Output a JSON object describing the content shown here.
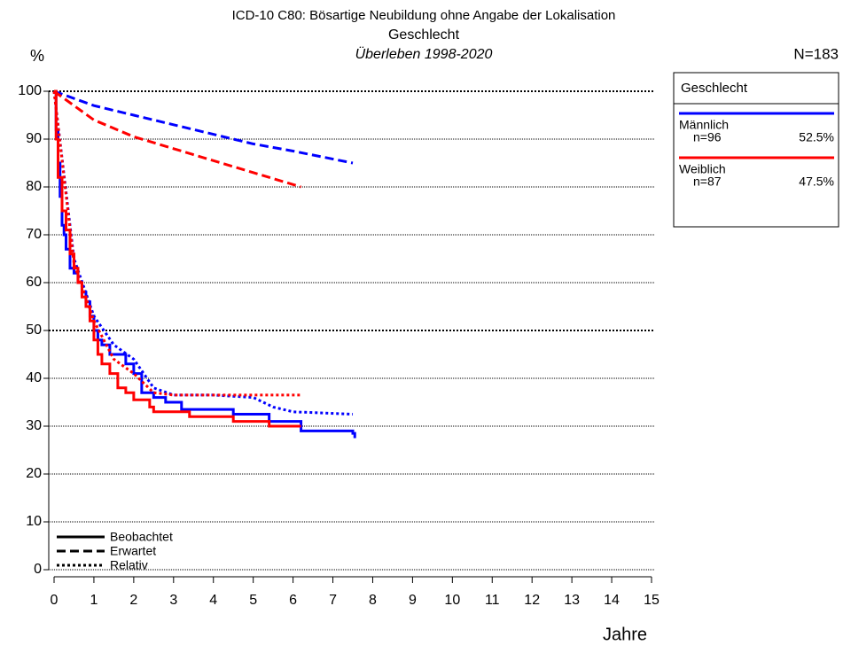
{
  "chart_data": {
    "type": "line",
    "title": "ICD-10 C80: Bösartige Neubildung ohne Angabe der Lokalisation",
    "subtitle": "Geschlecht",
    "subtitle2": "Überleben 1998-2020",
    "ylabel": "%",
    "n_label": "N=183",
    "xlabel": "Jahre",
    "xlim": [
      0,
      15
    ],
    "ylim": [
      0,
      100
    ],
    "xticks": [
      0,
      1,
      2,
      3,
      4,
      5,
      6,
      7,
      8,
      9,
      10,
      11,
      12,
      13,
      14,
      15
    ],
    "yticks": [
      0,
      10,
      20,
      30,
      40,
      50,
      60,
      70,
      80,
      90,
      100
    ],
    "grid": true,
    "legend_title": "Geschlecht",
    "legend": "upper right",
    "line_styles": [
      {
        "key": "observed",
        "name": "Beobachtet",
        "dash": "solid",
        "step": true
      },
      {
        "key": "expected",
        "name": "Erwartet",
        "dash": "dashed",
        "step": false
      },
      {
        "key": "relative",
        "name": "Relativ",
        "dash": "dotted",
        "step": false
      }
    ],
    "series": [
      {
        "name": "Männlich",
        "color": "#0000ff",
        "count_label": "n=96",
        "share_label": "52.5%",
        "observed": {
          "x": [
            0,
            0.05,
            0.1,
            0.15,
            0.2,
            0.25,
            0.3,
            0.4,
            0.5,
            0.6,
            0.7,
            0.8,
            0.9,
            1.0,
            1.1,
            1.2,
            1.4,
            1.8,
            2.0,
            2.2,
            2.5,
            2.8,
            3.2,
            4.5,
            5.4,
            6.2,
            7.5,
            7.55
          ],
          "y": [
            100,
            92,
            85,
            78,
            72,
            70,
            67,
            63,
            62,
            60,
            58,
            56,
            53,
            50,
            48,
            47,
            45,
            43,
            41,
            37,
            36,
            35,
            33.5,
            32.5,
            31,
            29,
            28.5,
            27.5
          ]
        },
        "expected": {
          "x": [
            0,
            1,
            2,
            3,
            4,
            5,
            6,
            7.5
          ],
          "y": [
            100,
            97,
            95,
            93,
            91,
            89,
            87.5,
            85
          ]
        },
        "relative": {
          "x": [
            0,
            0.5,
            1,
            1.5,
            2,
            2.5,
            3,
            4,
            5,
            5.5,
            6,
            7.5
          ],
          "y": [
            100,
            65,
            53,
            47,
            44,
            38,
            36.5,
            36.5,
            36,
            34,
            33,
            32.5
          ]
        }
      },
      {
        "name": "Weiblich",
        "color": "#ff0000",
        "count_label": "n=87",
        "share_label": "47.5%",
        "observed": {
          "x": [
            0,
            0.05,
            0.1,
            0.2,
            0.3,
            0.4,
            0.5,
            0.6,
            0.7,
            0.8,
            0.9,
            1.0,
            1.1,
            1.2,
            1.4,
            1.6,
            1.8,
            2.0,
            2.4,
            2.5,
            3.4,
            4.5,
            5.4,
            6.2
          ],
          "y": [
            100,
            90,
            82,
            75,
            71,
            66,
            63,
            60,
            57,
            55,
            52,
            48,
            45,
            43,
            41,
            38,
            37,
            35.5,
            34,
            33,
            32,
            31,
            30,
            30
          ]
        },
        "expected": {
          "x": [
            0,
            1,
            2,
            3,
            4,
            5,
            6.2
          ],
          "y": [
            100,
            94,
            90.5,
            88,
            85.5,
            83,
            80
          ]
        },
        "relative": {
          "x": [
            0,
            0.5,
            1,
            1.5,
            2,
            2.5,
            3,
            6.2
          ],
          "y": [
            100,
            64,
            52,
            44,
            41,
            37,
            36.5,
            36.5
          ]
        }
      }
    ]
  }
}
